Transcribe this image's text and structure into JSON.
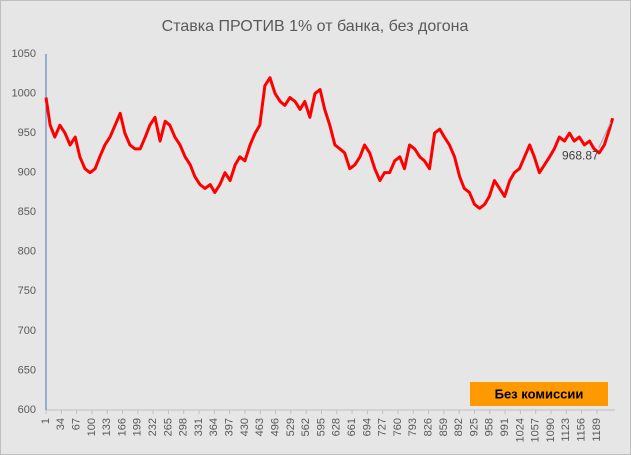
{
  "chart_data": {
    "type": "line",
    "title": "Ставка ПРОТИВ 1% от банка, без догона",
    "x": [
      1,
      10,
      20,
      31,
      42,
      53,
      64,
      74,
      85,
      96,
      107,
      117,
      128,
      139,
      150,
      161,
      171,
      182,
      193,
      204,
      215,
      225,
      236,
      247,
      258,
      268,
      279,
      290,
      301,
      312,
      322,
      333,
      344,
      355,
      365,
      376,
      387,
      398,
      409,
      419,
      430,
      441,
      452,
      462,
      473,
      484,
      495,
      506,
      516,
      527,
      538,
      549,
      559,
      570,
      581,
      592,
      602,
      613,
      624,
      635,
      645,
      656,
      667,
      678,
      688,
      699,
      710,
      721,
      731,
      742,
      753,
      764,
      774,
      785,
      796,
      807,
      817,
      828,
      839,
      850,
      860,
      871,
      882,
      893,
      903,
      914,
      925,
      936,
      947,
      957,
      968,
      979,
      990,
      1001,
      1011,
      1022,
      1033,
      1044,
      1054,
      1065,
      1076,
      1087,
      1097,
      1108,
      1119,
      1130,
      1140,
      1151,
      1162,
      1173,
      1183,
      1194,
      1205,
      1216,
      1223
    ],
    "series": [
      {
        "name": "Без комиссии",
        "color": "#ff0000",
        "values": [
          995,
          960,
          945,
          960,
          950,
          935,
          945,
          920,
          905,
          900,
          905,
          920,
          935,
          945,
          960,
          975,
          950,
          935,
          930,
          930,
          945,
          960,
          970,
          940,
          965,
          960,
          945,
          935,
          920,
          910,
          895,
          885,
          880,
          885,
          875,
          885,
          900,
          890,
          910,
          920,
          915,
          935,
          950,
          960,
          1010,
          1020,
          1000,
          990,
          985,
          995,
          990,
          980,
          990,
          970,
          1000,
          1005,
          980,
          960,
          935,
          930,
          925,
          905,
          910,
          920,
          935,
          925,
          905,
          890,
          900,
          900,
          915,
          920,
          905,
          935,
          930,
          920,
          915,
          905,
          950,
          955,
          945,
          935,
          920,
          895,
          880,
          875,
          860,
          855,
          860,
          870,
          890,
          880,
          870,
          890,
          900,
          905,
          920,
          935,
          920,
          900,
          910,
          920,
          930,
          945,
          940,
          950,
          940,
          945,
          935,
          940,
          930,
          925,
          935,
          955,
          968.87
        ]
      }
    ],
    "legend_color": "#ff9900",
    "xlim": [
      1,
      1228
    ],
    "xticks": [
      1,
      34,
      67,
      100,
      133,
      166,
      199,
      232,
      265,
      298,
      331,
      364,
      397,
      430,
      463,
      496,
      529,
      562,
      595,
      628,
      661,
      694,
      727,
      760,
      793,
      826,
      859,
      892,
      925,
      958,
      991,
      1024,
      1057,
      1090,
      1123,
      1156,
      1189
    ],
    "ylim": [
      600,
      1050
    ],
    "yticks": [
      600,
      650,
      700,
      750,
      800,
      850,
      900,
      950,
      1000,
      1050
    ],
    "grid": false
  }
}
